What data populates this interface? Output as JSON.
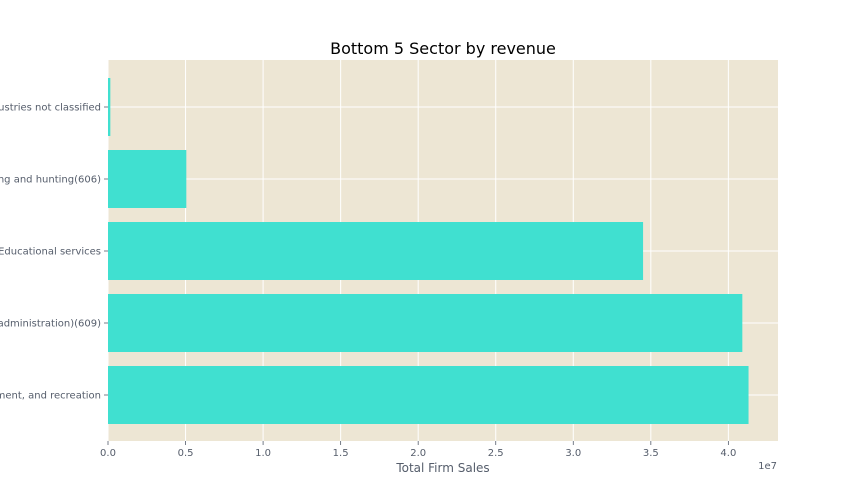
{
  "chart_data": {
    "type": "bar",
    "orientation": "horizontal",
    "title": "Bottom 5 Sector by revenue",
    "xlabel": "Total Firm Sales",
    "ylabel": "",
    "x_offset_label": "1e7",
    "x_scale": 10000000,
    "xlim": [
      0,
      43200000
    ],
    "xticks": [
      0,
      5000000,
      10000000,
      15000000,
      20000000,
      25000000,
      30000000,
      35000000,
      40000000
    ],
    "xtick_labels": [
      "0.0",
      "0.5",
      "1.0",
      "1.5",
      "2.0",
      "2.5",
      "3.0",
      "3.5",
      "4.0"
    ],
    "categories": [
      "ustries not classified",
      "ng and hunting(606)",
      "Educational services",
      "administration)(609)",
      "ment, and recreation"
    ],
    "values": [
      150000,
      5050000,
      34500000,
      40900000,
      41300000
    ],
    "grid": true,
    "colors": {
      "bar": "#40e0d0",
      "plot_background": "#ede6d4",
      "grid": "#ffffff",
      "text": "#555d6b"
    }
  }
}
